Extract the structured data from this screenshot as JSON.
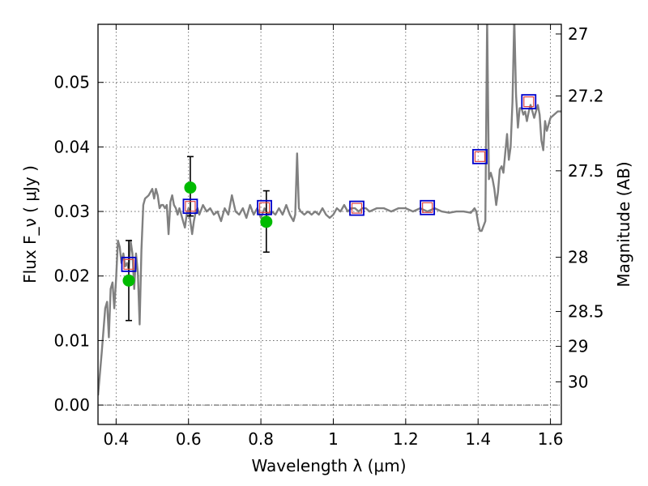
{
  "chart_data": {
    "type": "line",
    "xlabel": "Wavelength  λ (μm)",
    "ylabel": "Flux  F_ν  ( μJy )",
    "y2label": "Magnitude (AB)",
    "xlim": [
      0.35,
      1.63
    ],
    "ylim": [
      -0.003,
      0.059
    ],
    "x_ticks": [
      0.4,
      0.6,
      0.8,
      1.0,
      1.2,
      1.4,
      1.6
    ],
    "x_tick_labels": [
      "0.4",
      "0.6",
      "0.8",
      "1",
      "1.2",
      "1.4",
      "1.6"
    ],
    "y_ticks": [
      0.0,
      0.01,
      0.02,
      0.03,
      0.04,
      0.05
    ],
    "y_tick_labels": [
      "0.00",
      "0.01",
      "0.02",
      "0.03",
      "0.04",
      "0.05"
    ],
    "y2_ticks": [
      {
        "label": "27",
        "flux": 0.0575
      },
      {
        "label": "27.2",
        "flux": 0.0479
      },
      {
        "label": "27.5",
        "flux": 0.0363
      },
      {
        "label": "28",
        "flux": 0.0229
      },
      {
        "label": "28.5",
        "flux": 0.0145
      },
      {
        "label": "29",
        "flux": 0.0091
      },
      {
        "label": "30",
        "flux": 0.0036
      }
    ],
    "grid": true,
    "zero_line": true,
    "colors": {
      "spectrum": "#808080",
      "observed": "#00bb00",
      "model_box": "#0000cc",
      "model_inner": "#dd4444",
      "errorbar": "#000000"
    },
    "series": [
      {
        "kind": "spectrum",
        "x": [
          0.35,
          0.36,
          0.37,
          0.375,
          0.38,
          0.385,
          0.39,
          0.395,
          0.4,
          0.405,
          0.41,
          0.415,
          0.42,
          0.425,
          0.43,
          0.435,
          0.44,
          0.445,
          0.45,
          0.455,
          0.46,
          0.465,
          0.47,
          0.475,
          0.48,
          0.49,
          0.5,
          0.505,
          0.51,
          0.515,
          0.52,
          0.525,
          0.53,
          0.535,
          0.54,
          0.545,
          0.55,
          0.555,
          0.56,
          0.565,
          0.57,
          0.575,
          0.58,
          0.585,
          0.59,
          0.595,
          0.6,
          0.605,
          0.61,
          0.615,
          0.62,
          0.625,
          0.63,
          0.64,
          0.65,
          0.66,
          0.67,
          0.68,
          0.69,
          0.7,
          0.71,
          0.72,
          0.73,
          0.74,
          0.75,
          0.76,
          0.77,
          0.78,
          0.79,
          0.8,
          0.81,
          0.82,
          0.83,
          0.84,
          0.85,
          0.86,
          0.87,
          0.88,
          0.89,
          0.895,
          0.9,
          0.905,
          0.91,
          0.92,
          0.93,
          0.94,
          0.95,
          0.96,
          0.97,
          0.98,
          0.99,
          1.0,
          1.01,
          1.02,
          1.03,
          1.04,
          1.05,
          1.06,
          1.07,
          1.08,
          1.09,
          1.1,
          1.12,
          1.14,
          1.16,
          1.18,
          1.2,
          1.22,
          1.24,
          1.26,
          1.28,
          1.3,
          1.32,
          1.34,
          1.36,
          1.38,
          1.39,
          1.395,
          1.4,
          1.405,
          1.41,
          1.42,
          1.425,
          1.43,
          1.435,
          1.44,
          1.445,
          1.45,
          1.455,
          1.46,
          1.465,
          1.47,
          1.475,
          1.48,
          1.485,
          1.49,
          1.495,
          1.5,
          1.505,
          1.51,
          1.515,
          1.52,
          1.525,
          1.53,
          1.535,
          1.54,
          1.545,
          1.55,
          1.555,
          1.56,
          1.565,
          1.57,
          1.575,
          1.58,
          1.585,
          1.59,
          1.6,
          1.61,
          1.62,
          1.63
        ],
        "y": [
          0.0015,
          0.008,
          0.015,
          0.016,
          0.0105,
          0.018,
          0.019,
          0.015,
          0.0195,
          0.0255,
          0.0245,
          0.022,
          0.0235,
          0.0215,
          0.022,
          0.021,
          0.0255,
          0.0235,
          0.018,
          0.0235,
          0.0205,
          0.0125,
          0.024,
          0.031,
          0.032,
          0.0325,
          0.0335,
          0.032,
          0.0335,
          0.0325,
          0.0305,
          0.031,
          0.031,
          0.0305,
          0.031,
          0.0265,
          0.0315,
          0.0325,
          0.031,
          0.0305,
          0.0295,
          0.0305,
          0.0295,
          0.0285,
          0.0275,
          0.0295,
          0.0305,
          0.0285,
          0.0265,
          0.0285,
          0.03,
          0.0305,
          0.0295,
          0.031,
          0.03,
          0.0305,
          0.0295,
          0.03,
          0.0285,
          0.0305,
          0.0295,
          0.0325,
          0.03,
          0.0295,
          0.0305,
          0.029,
          0.031,
          0.0295,
          0.0305,
          0.029,
          0.0305,
          0.0295,
          0.03,
          0.0295,
          0.0305,
          0.0295,
          0.031,
          0.0295,
          0.0285,
          0.0295,
          0.039,
          0.0305,
          0.03,
          0.0295,
          0.03,
          0.0295,
          0.03,
          0.0295,
          0.0305,
          0.0295,
          0.029,
          0.0295,
          0.0305,
          0.03,
          0.031,
          0.03,
          0.0305,
          0.0305,
          0.03,
          0.0305,
          0.0305,
          0.03,
          0.0305,
          0.0305,
          0.03,
          0.0305,
          0.0305,
          0.03,
          0.0305,
          0.03,
          0.0305,
          0.03,
          0.0298,
          0.03,
          0.03,
          0.0298,
          0.0305,
          0.03,
          0.0283,
          0.027,
          0.027,
          0.0285,
          0.06,
          0.035,
          0.036,
          0.035,
          0.0335,
          0.031,
          0.033,
          0.0365,
          0.037,
          0.036,
          0.039,
          0.042,
          0.038,
          0.04,
          0.047,
          0.06,
          0.048,
          0.043,
          0.046,
          0.046,
          0.045,
          0.0455,
          0.044,
          0.0455,
          0.0465,
          0.0455,
          0.0445,
          0.0455,
          0.0465,
          0.045,
          0.041,
          0.0395,
          0.044,
          0.0425,
          0.0445,
          0.045,
          0.0455,
          0.0455
        ]
      },
      {
        "kind": "observed",
        "points": [
          {
            "x": 0.435,
            "y": 0.0193,
            "ylow": 0.0131,
            "yhigh": 0.0255
          },
          {
            "x": 0.605,
            "y": 0.0337,
            "ylow": 0.0293,
            "yhigh": 0.0385
          },
          {
            "x": 0.815,
            "y": 0.0284,
            "ylow": 0.0237,
            "yhigh": 0.0332
          }
        ]
      },
      {
        "kind": "model",
        "points": [
          {
            "x": 0.435,
            "y": 0.0218
          },
          {
            "x": 0.605,
            "y": 0.0308
          },
          {
            "x": 0.81,
            "y": 0.0306
          },
          {
            "x": 1.065,
            "y": 0.0305
          },
          {
            "x": 1.26,
            "y": 0.0306
          },
          {
            "x": 1.405,
            "y": 0.0385
          },
          {
            "x": 1.54,
            "y": 0.047
          }
        ]
      }
    ]
  }
}
